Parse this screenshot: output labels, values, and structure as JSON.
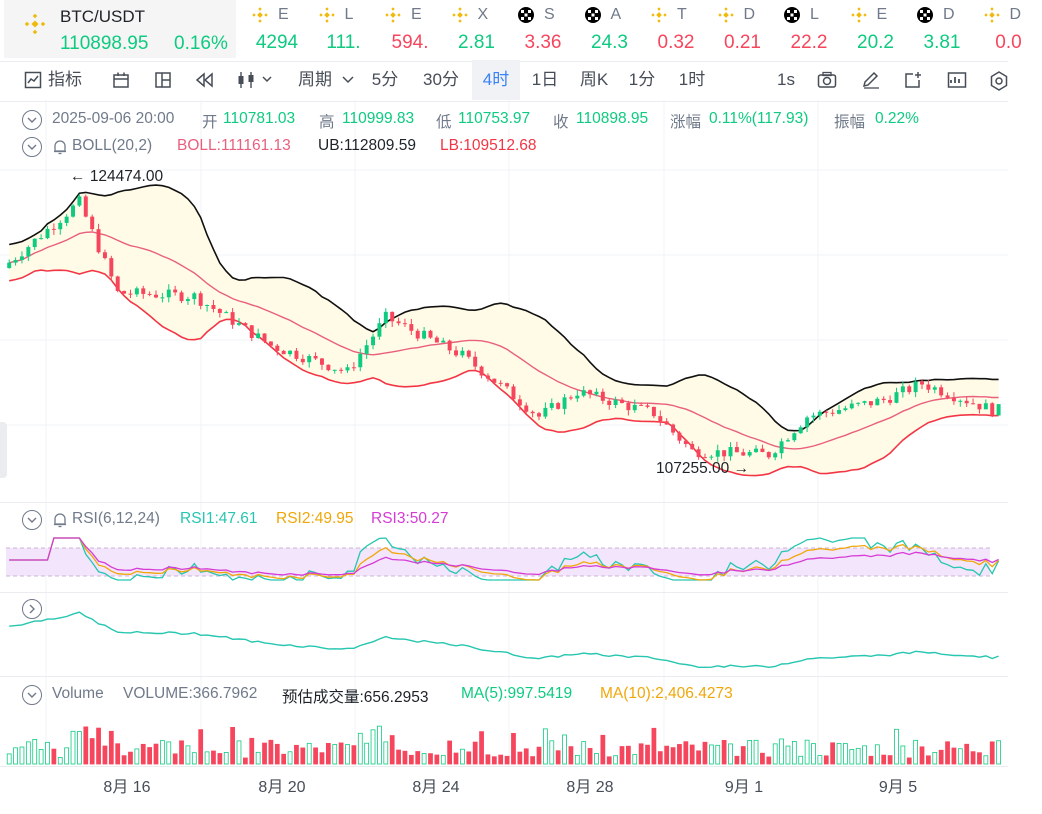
{
  "ticker": {
    "main": {
      "symbol": "BTC/USDT",
      "price": "110898.95",
      "change": "0.16%"
    },
    "coins": [
      {
        "icon": "bnb-icon",
        "symbol": "E",
        "value": "4294",
        "dir": "up"
      },
      {
        "icon": "bnb-icon",
        "symbol": "L",
        "value": "111.",
        "dir": "up"
      },
      {
        "icon": "bnb-icon",
        "symbol": "E",
        "value": "594.",
        "dir": "down"
      },
      {
        "icon": "bnb-icon",
        "symbol": "X",
        "value": "2.81",
        "dir": "up"
      },
      {
        "icon": "okx-icon",
        "symbol": "S",
        "value": "3.36",
        "dir": "down"
      },
      {
        "icon": "okx-icon",
        "symbol": "A",
        "value": "24.3",
        "dir": "up"
      },
      {
        "icon": "bnb-icon",
        "symbol": "T",
        "value": "0.32",
        "dir": "down"
      },
      {
        "icon": "bnb-icon",
        "symbol": "D",
        "value": "0.21",
        "dir": "down"
      },
      {
        "icon": "okx-icon",
        "symbol": "L",
        "value": "22.2",
        "dir": "down"
      },
      {
        "icon": "bnb-icon",
        "symbol": "E",
        "value": "20.2",
        "dir": "up"
      },
      {
        "icon": "okx-icon",
        "symbol": "D",
        "value": "3.81",
        "dir": "up"
      },
      {
        "icon": "bnb-icon",
        "symbol": "D",
        "value": "0.0",
        "dir": "down"
      }
    ]
  },
  "toolbar": {
    "indicators_label": "指标",
    "period_label": "周期",
    "intervals": [
      "5分",
      "30分",
      "4时",
      "1日",
      "周K",
      "1分",
      "1时"
    ],
    "active_interval": "4时",
    "right_interval": "1s"
  },
  "ohlc": {
    "datetime": "2025-09-06 20:00",
    "open_label": "开",
    "open": "110781.03",
    "high_label": "高",
    "high": "110999.83",
    "low_label": "低",
    "low": "110753.97",
    "close_label": "收",
    "close": "110898.95",
    "change_label": "涨幅",
    "change": "0.11%(117.93)",
    "amplitude_label": "振幅",
    "amplitude": "0.22%"
  },
  "boll": {
    "name": "BOLL(20,2)",
    "mid": "BOLL:111161.13",
    "ub": "UB:112809.59",
    "lb": "LB:109512.68"
  },
  "price_markers": {
    "max": "124474.00",
    "min": "107255.00"
  },
  "rsi": {
    "name": "RSI(6,12,24)",
    "rsi1": "RSI1:47.61",
    "rsi2": "RSI2:49.95",
    "rsi3": "RSI3:50.27"
  },
  "volume": {
    "name": "Volume",
    "volume": "VOLUME:366.7962",
    "estimate": "预估成交量:656.2953",
    "ma5": "MA(5):997.5419",
    "ma10": "MA(10):2,406.4273"
  },
  "x_axis_labels": [
    "8月 16",
    "8月 20",
    "8月 24",
    "8月 28",
    "9月 1",
    "9月 5"
  ],
  "colors": {
    "up": "#0ecb81",
    "down": "#f6465d",
    "boll_upper": "#111111",
    "boll_mid": "#e8607e",
    "boll_lower": "#f23645",
    "band_fill": "#fffbe6",
    "rsi1": "#26c6b0",
    "rsi2": "#f0a70a",
    "rsi3": "#d63bd6",
    "rsi_zone": "#f3e5fb",
    "active_tab": "#3b82f6",
    "bnb_gold": "#f0b90b"
  },
  "chart_data": {
    "type": "candlestick",
    "interval": "4h",
    "x_start": "2025-08-12",
    "x_end": "2025-09-06 20:00",
    "price_range": [
      107255.0,
      124474.0
    ],
    "max_price": 124474.0,
    "max_price_time": "2025-08-14",
    "min_price": 107255.0,
    "min_price_time": "2025-08-31",
    "close_trend": [
      {
        "date": "2025-08-12",
        "close": 119500
      },
      {
        "date": "2025-08-14",
        "close": 123500
      },
      {
        "date": "2025-08-15",
        "close": 118000
      },
      {
        "date": "2025-08-17",
        "close": 117800
      },
      {
        "date": "2025-08-19",
        "close": 114800
      },
      {
        "date": "2025-08-21",
        "close": 113200
      },
      {
        "date": "2025-08-22",
        "close": 116500
      },
      {
        "date": "2025-08-24",
        "close": 114200
      },
      {
        "date": "2025-08-26",
        "close": 110500
      },
      {
        "date": "2025-08-27",
        "close": 112000
      },
      {
        "date": "2025-08-29",
        "close": 110700
      },
      {
        "date": "2025-08-30",
        "close": 108400
      },
      {
        "date": "2025-09-01",
        "close": 108200
      },
      {
        "date": "2025-09-02",
        "close": 110500
      },
      {
        "date": "2025-09-04",
        "close": 111500
      },
      {
        "date": "2025-09-05",
        "close": 112500
      },
      {
        "date": "2025-09-06",
        "close": 110898.95
      }
    ]
  }
}
